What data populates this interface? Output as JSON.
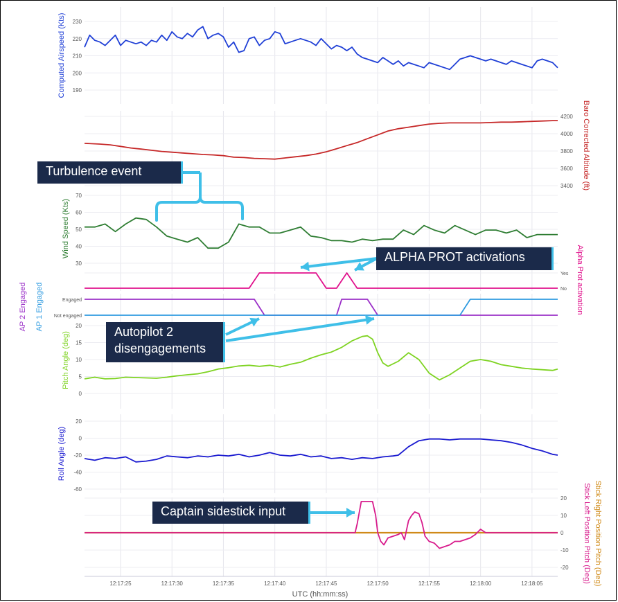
{
  "time_axis": {
    "label": "UTC (hh:mm:ss)",
    "tick_labels": [
      "12:17:25",
      "12:17:30",
      "12:17:35",
      "12:17:40",
      "12:17:45",
      "12:17:50",
      "12:17:55",
      "12:18:00",
      "12:18:05"
    ],
    "tick_seconds": [
      25,
      30,
      35,
      40,
      45,
      50,
      55,
      60,
      65
    ],
    "range": [
      21.5,
      67.5
    ]
  },
  "callouts": {
    "turbulence": "Turbulence event",
    "alpha": "ALPHA PROT activations",
    "autopilot_line1": "Autopilot 2",
    "autopilot_line2": "disengagements",
    "sidestick": "Captain sidestick input"
  },
  "colors": {
    "airspeed": "#1f3fd6",
    "altitude": "#c62828",
    "wind": "#2e7d32",
    "alpha": "#e0108c",
    "ap2": "#9b30c8",
    "ap1": "#2f9be0",
    "pitch": "#7ed321",
    "roll": "#1a1ad0",
    "stick_left": "#d81b8c",
    "stick_right": "#d08a18",
    "callout_bg": "#1b2a4a",
    "callout_line": "#3fbfe8"
  },
  "chart_data": [
    {
      "type": "line",
      "ylabel": "Computed Airspeed (Kts)",
      "ylim": [
        190,
        230
      ],
      "yticks": [
        "190",
        "200",
        "210",
        "220",
        "230"
      ],
      "series": [
        {
          "name": "Computed Airspeed (Kts)",
          "x": [
            21.5,
            22,
            22.5,
            23,
            23.5,
            24,
            24.5,
            25,
            25.5,
            26,
            26.5,
            27,
            27.5,
            28,
            28.5,
            29,
            29.5,
            30,
            30.5,
            31,
            31.5,
            32,
            32.5,
            33,
            33.5,
            34,
            34.5,
            35,
            35.5,
            36,
            36.5,
            37,
            37.5,
            38,
            38.5,
            39,
            39.5,
            40,
            40.5,
            41,
            41.5,
            42,
            42.5,
            43,
            43.5,
            44,
            44.5,
            45,
            45.5,
            46,
            46.5,
            47,
            47.5,
            48,
            48.5,
            49,
            49.5,
            50,
            50.5,
            51,
            51.5,
            52,
            52.5,
            53,
            53.5,
            54,
            54.5,
            55,
            55.5,
            56,
            56.5,
            57,
            57.5,
            58,
            58.5,
            59,
            59.5,
            60,
            60.5,
            61,
            61.5,
            62,
            62.5,
            63,
            63.5,
            64,
            64.5,
            65,
            65.5,
            66,
            66.5,
            67,
            67.5
          ],
          "values": [
            215,
            222,
            219,
            218,
            216,
            219,
            222,
            216,
            219,
            218,
            217,
            218,
            216,
            219,
            218,
            222,
            219,
            224,
            221,
            220,
            223,
            221,
            225,
            227,
            220,
            222,
            223,
            221,
            215,
            218,
            212,
            213,
            220,
            221,
            216,
            219,
            220,
            224,
            223,
            217,
            218,
            219,
            220,
            219,
            218,
            216,
            220,
            217,
            214,
            216,
            215,
            213,
            215,
            211,
            209,
            208,
            207,
            206,
            209,
            207,
            205,
            207,
            204,
            206,
            205,
            204,
            203,
            206,
            205,
            204,
            203,
            202,
            205,
            208,
            209,
            210,
            209,
            208,
            207,
            208,
            207,
            206,
            205,
            207,
            206,
            205,
            204,
            203,
            207,
            208,
            207,
            206,
            203
          ]
        }
      ]
    },
    {
      "type": "line",
      "ylabel": "Baro Corrected Altitude (ft)",
      "ylim": [
        3300,
        4200
      ],
      "yticks": [
        "3400",
        "3600",
        "3800",
        "4000",
        "4200"
      ],
      "series": [
        {
          "name": "Baro Corrected Altitude (ft)",
          "x": [
            21.5,
            23,
            24,
            25,
            26,
            27,
            28,
            29,
            30,
            31,
            32,
            33,
            34,
            35,
            36,
            37,
            38,
            39,
            40,
            41,
            42,
            43,
            44,
            45,
            46,
            47,
            48,
            49,
            50,
            51,
            52,
            53,
            54,
            55,
            56,
            57,
            58,
            59,
            60,
            61,
            62,
            63,
            64,
            65,
            66,
            67,
            67.5
          ],
          "values": [
            3850,
            3840,
            3830,
            3810,
            3790,
            3775,
            3760,
            3745,
            3735,
            3725,
            3715,
            3705,
            3700,
            3690,
            3670,
            3665,
            3655,
            3650,
            3645,
            3660,
            3675,
            3690,
            3710,
            3740,
            3780,
            3820,
            3860,
            3910,
            3960,
            4010,
            4040,
            4060,
            4080,
            4100,
            4110,
            4115,
            4115,
            4115,
            4115,
            4120,
            4125,
            4125,
            4130,
            4135,
            4140,
            4145,
            4145
          ]
        }
      ]
    },
    {
      "type": "line",
      "ylabel": "Wind Speed (Kts)",
      "ylim": [
        25,
        70
      ],
      "yticks": [
        "30",
        "40",
        "50",
        "60",
        "70"
      ],
      "series": [
        {
          "name": "Wind Speed (Kts)",
          "x": [
            21.5,
            22.5,
            23.5,
            24.5,
            25.5,
            26.5,
            27.5,
            28.5,
            29.5,
            30.5,
            31.5,
            32.5,
            33.5,
            34.5,
            35.5,
            36.5,
            37.5,
            38.5,
            39.5,
            40.5,
            41.5,
            42.5,
            43.5,
            44.5,
            45.5,
            46.5,
            47.5,
            48.5,
            49.5,
            50.5,
            51.5,
            52.5,
            53.5,
            54.5,
            55.5,
            56.5,
            57.5,
            58.5,
            59.5,
            60.5,
            61.5,
            62.5,
            63.5,
            64.5,
            65.5,
            66.5,
            67.5
          ],
          "values": [
            49,
            49,
            51,
            46,
            51,
            55,
            54,
            49,
            43,
            41,
            39,
            42,
            35,
            35,
            39,
            51,
            49,
            49,
            45,
            45,
            47,
            49,
            43,
            42,
            40,
            40,
            39,
            41,
            40,
            41,
            41,
            47,
            44,
            50,
            47,
            45,
            50,
            47,
            44,
            47,
            47,
            45,
            47,
            42,
            44,
            44,
            44
          ]
        }
      ]
    },
    {
      "type": "line",
      "ylabel": "Alpha Prot activation",
      "yticks": [
        "No",
        "Yes"
      ],
      "ylim": [
        0,
        1
      ],
      "series": [
        {
          "name": "Alpha Prot activation",
          "x": [
            21.5,
            37.5,
            38.5,
            44,
            45,
            46,
            47,
            48,
            67.5
          ],
          "values": [
            0,
            0,
            1,
            1,
            0,
            0,
            1,
            0,
            0
          ]
        }
      ]
    },
    {
      "type": "line",
      "ylabel": [
        "AP 2 Engaged",
        "AP 1 Engaged"
      ],
      "yticks": [
        "Not engaged",
        "Engaged"
      ],
      "ylim": [
        0,
        1
      ],
      "series": [
        {
          "name": "AP 2 Engaged",
          "x": [
            21.5,
            38,
            39,
            46,
            46.5,
            49,
            50,
            67.5
          ],
          "values": [
            1,
            1,
            0,
            0,
            1,
            1,
            0,
            0
          ]
        },
        {
          "name": "AP 1 Engaged",
          "x": [
            21.5,
            58,
            59,
            67.5
          ],
          "values": [
            0,
            0,
            1,
            1
          ]
        }
      ]
    },
    {
      "type": "line",
      "ylabel": "Pitch Angle (deg)",
      "ylim": [
        0,
        20
      ],
      "yticks": [
        "0",
        "5",
        "10",
        "15",
        "20"
      ],
      "series": [
        {
          "name": "Pitch Angle (deg)",
          "x": [
            21.5,
            22.5,
            23.5,
            24.5,
            25.5,
            26.5,
            27.5,
            28.5,
            29.5,
            30.5,
            31.5,
            32.5,
            33.5,
            34.5,
            35.5,
            36.5,
            37.5,
            38.5,
            39.5,
            40.5,
            41.5,
            42.5,
            43.5,
            44.5,
            45.5,
            46.5,
            47.5,
            48.5,
            49,
            49.5,
            50,
            50.5,
            51,
            52,
            53,
            54,
            55,
            56,
            57,
            58,
            59,
            60,
            61,
            62,
            63,
            64,
            65,
            66,
            67,
            67.5
          ],
          "values": [
            4.3,
            4.8,
            4.3,
            4.4,
            4.8,
            4.7,
            4.6,
            4.5,
            4.8,
            5.2,
            5.5,
            5.8,
            6.4,
            7.2,
            7.6,
            8.1,
            8.3,
            8,
            8.3,
            7.8,
            8.6,
            9.2,
            10.4,
            11.4,
            12.2,
            13.6,
            15.5,
            16.8,
            17,
            16,
            12,
            9,
            8,
            9.5,
            12,
            10,
            6,
            4,
            5.5,
            7.5,
            9.5,
            10,
            9.5,
            8.5,
            8,
            7.5,
            7.2,
            7,
            6.8,
            7.2
          ]
        }
      ]
    },
    {
      "type": "line",
      "ylabel": "Roll Angle (deg)",
      "ylim": [
        -60,
        20
      ],
      "yticks": [
        "-60",
        "-40",
        "-20",
        "0",
        "20"
      ],
      "series": [
        {
          "name": "Roll Angle (deg)",
          "x": [
            21.5,
            22.5,
            23.5,
            24.5,
            25.5,
            26.5,
            27.5,
            28.5,
            29.5,
            30.5,
            31.5,
            32.5,
            33.5,
            34.5,
            35.5,
            36.5,
            37.5,
            38.5,
            39.5,
            40.5,
            41.5,
            42.5,
            43.5,
            44.5,
            45.5,
            46.5,
            47.5,
            48.5,
            49.5,
            50.5,
            51.5,
            52,
            52.5,
            53,
            54,
            55,
            56,
            57,
            58,
            59,
            60,
            61,
            62,
            63,
            64,
            65,
            66,
            67,
            67.5
          ],
          "values": [
            -24,
            -26,
            -23,
            -24,
            -22,
            -28,
            -27,
            -25,
            -21,
            -22,
            -23,
            -21,
            -22,
            -20,
            -21,
            -19,
            -22,
            -20,
            -17,
            -20,
            -21,
            -19,
            -22,
            -21,
            -24,
            -23,
            -25,
            -23,
            -24,
            -22,
            -21,
            -20,
            -15,
            -10,
            -3,
            -1,
            -1,
            -2,
            -1,
            -1,
            -1,
            -2,
            -3,
            -5,
            -8,
            -12,
            -15,
            -19,
            -20
          ]
        }
      ]
    },
    {
      "type": "line",
      "ylabel": [
        "Stick Right Position Pitch (Deg)",
        "Stick Left Position Pitch (Deg)"
      ],
      "ylim": [
        -20,
        20
      ],
      "yticks": [
        "-20",
        "-10",
        "0",
        "10",
        "20"
      ],
      "series": [
        {
          "name": "Stick Right Position Pitch (Deg)",
          "x": [
            21.5,
            67.5
          ],
          "values": [
            0,
            0
          ]
        },
        {
          "name": "Stick Left Position Pitch (Deg)",
          "x": [
            21.5,
            47.8,
            48,
            48.4,
            49,
            49.5,
            49.8,
            50,
            50.3,
            50.6,
            51,
            51.5,
            52,
            52.3,
            52.6,
            53,
            53.3,
            53.6,
            54,
            54.3,
            54.6,
            55,
            55.5,
            56,
            56.5,
            57,
            57.5,
            58,
            58.5,
            59,
            59.5,
            60,
            60.5,
            61,
            61.5,
            62,
            67.5
          ],
          "values": [
            0,
            0,
            5,
            18,
            18,
            18,
            10,
            0,
            -5,
            -7,
            -3,
            -2,
            -1,
            0,
            -4,
            7,
            10,
            12,
            11,
            6,
            -2,
            -5,
            -6,
            -9,
            -8,
            -7,
            -5,
            -5,
            -4,
            -3,
            -1,
            2,
            0,
            0,
            0,
            0,
            0
          ]
        }
      ]
    }
  ]
}
